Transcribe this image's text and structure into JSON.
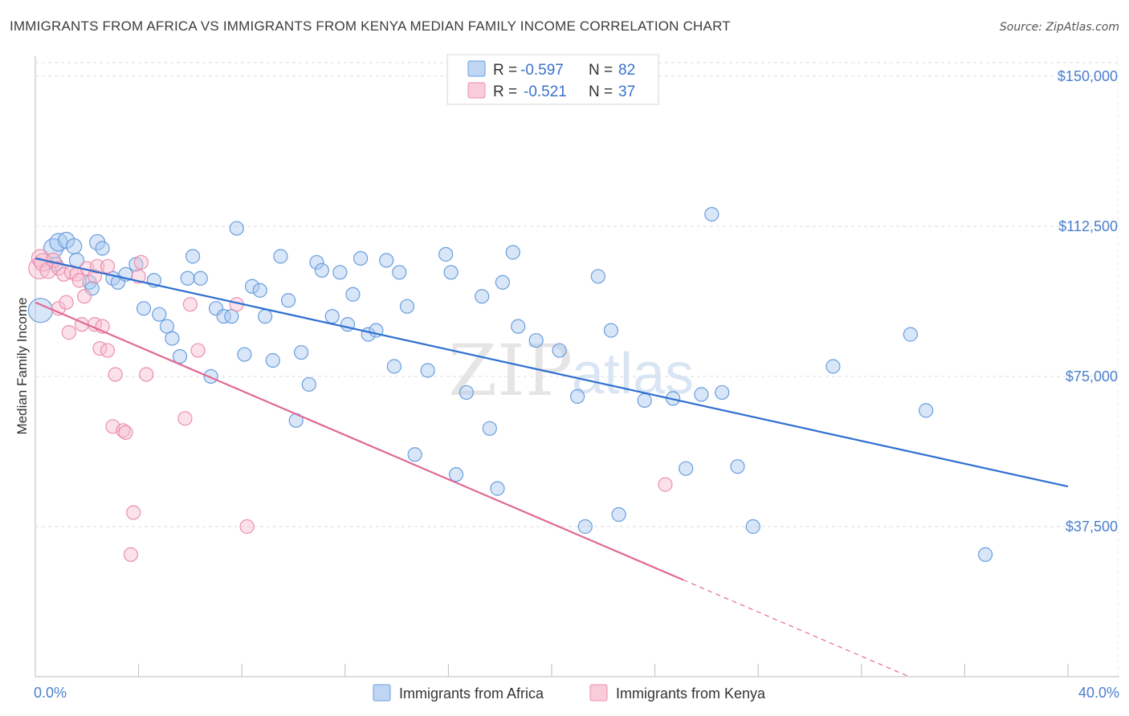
{
  "title": "IMMIGRANTS FROM AFRICA VS IMMIGRANTS FROM KENYA MEDIAN FAMILY INCOME CORRELATION CHART",
  "source": "Source: ZipAtlas.com",
  "watermark": {
    "zip": "ZIP",
    "atlas": "atlas"
  },
  "colors": {
    "africa_fill": "#a9c7ef",
    "africa_stroke": "#6a9ede",
    "africa_line": "#2e6fd0",
    "kenya_fill": "#f6bfd0",
    "kenya_stroke": "#ec8fae",
    "kenya_line": "#e06a94",
    "tick_text": "#4a7fcf",
    "grid": "#dddddd"
  },
  "legend": {
    "rows": [
      {
        "r_label": "R =",
        "r_value": "-0.597",
        "n_label": "N =",
        "n_value": "82"
      },
      {
        "r_label": "R =",
        "r_value": "-0.521",
        "n_label": "N =",
        "n_value": "37"
      }
    ]
  },
  "chart_data": {
    "type": "scatter",
    "ylabel": "Median Family Income",
    "x_tick_labels": [
      "0.0%",
      "40.0%"
    ],
    "y_tick_labels": [
      "$150,000",
      "$112,500",
      "$75,000",
      "$37,500"
    ],
    "xlim": [
      0,
      40
    ],
    "ylim": [
      0,
      155000
    ],
    "y_ticks": [
      150000,
      112500,
      75000,
      37500
    ],
    "grid": true,
    "series": [
      {
        "name": "Immigrants from Africa",
        "r": -0.597,
        "n": 82,
        "trend": {
          "x0": 0.0,
          "y0": 104500,
          "x1": 40.0,
          "y1": 47500,
          "dashed_from_x": null
        },
        "points": [
          [
            0.2,
            91500,
            30
          ],
          [
            0.7,
            107000,
            24
          ],
          [
            0.9,
            108500,
            22
          ],
          [
            1.2,
            109000,
            20
          ],
          [
            1.5,
            107500,
            19
          ],
          [
            1.6,
            104000,
            18
          ],
          [
            0.8,
            103000,
            17
          ],
          [
            2.4,
            108500,
            19
          ],
          [
            2.6,
            107000,
            17
          ],
          [
            2.1,
            98500,
            17
          ],
          [
            2.2,
            97000,
            17
          ],
          [
            3.0,
            99500,
            17
          ],
          [
            3.2,
            98500,
            17
          ],
          [
            3.5,
            100500,
            17
          ],
          [
            3.9,
            103000,
            17
          ],
          [
            4.2,
            92000,
            17
          ],
          [
            4.6,
            99000,
            17
          ],
          [
            4.8,
            90500,
            17
          ],
          [
            5.1,
            87500,
            17
          ],
          [
            5.3,
            84500,
            17
          ],
          [
            5.6,
            80000,
            17
          ],
          [
            5.9,
            99500,
            17
          ],
          [
            6.1,
            105000,
            17
          ],
          [
            6.4,
            99500,
            17
          ],
          [
            6.8,
            75000,
            17
          ],
          [
            7.0,
            92000,
            17
          ],
          [
            7.3,
            90000,
            17
          ],
          [
            7.6,
            90000,
            17
          ],
          [
            7.8,
            112000,
            17
          ],
          [
            8.1,
            80500,
            17
          ],
          [
            8.4,
            97500,
            17
          ],
          [
            8.7,
            96500,
            17
          ],
          [
            8.9,
            90000,
            17
          ],
          [
            9.2,
            79000,
            17
          ],
          [
            9.5,
            105000,
            17
          ],
          [
            9.8,
            94000,
            17
          ],
          [
            10.1,
            64000,
            17
          ],
          [
            10.3,
            81000,
            17
          ],
          [
            10.6,
            73000,
            17
          ],
          [
            10.9,
            103500,
            17
          ],
          [
            11.1,
            101500,
            17
          ],
          [
            11.5,
            90000,
            17
          ],
          [
            11.8,
            101000,
            17
          ],
          [
            12.1,
            88000,
            17
          ],
          [
            12.3,
            95500,
            17
          ],
          [
            12.6,
            104500,
            17
          ],
          [
            12.9,
            85500,
            17
          ],
          [
            13.2,
            86500,
            17
          ],
          [
            13.6,
            104000,
            17
          ],
          [
            13.9,
            77500,
            17
          ],
          [
            14.1,
            101000,
            17
          ],
          [
            14.4,
            92500,
            17
          ],
          [
            14.7,
            55500,
            17
          ],
          [
            15.2,
            76500,
            17
          ],
          [
            15.9,
            105500,
            17
          ],
          [
            16.1,
            101000,
            17
          ],
          [
            16.3,
            50500,
            17
          ],
          [
            16.7,
            71000,
            17
          ],
          [
            17.3,
            95000,
            17
          ],
          [
            17.6,
            62000,
            17
          ],
          [
            17.9,
            47000,
            17
          ],
          [
            18.1,
            98500,
            17
          ],
          [
            18.5,
            106000,
            17
          ],
          [
            18.7,
            87500,
            17
          ],
          [
            19.4,
            84000,
            17
          ],
          [
            20.3,
            81500,
            17
          ],
          [
            21.0,
            70000,
            17
          ],
          [
            21.3,
            37500,
            17
          ],
          [
            21.8,
            100000,
            17
          ],
          [
            22.6,
            40500,
            17
          ],
          [
            22.3,
            86500,
            17
          ],
          [
            23.6,
            69000,
            17
          ],
          [
            24.7,
            69500,
            17
          ],
          [
            25.2,
            52000,
            17
          ],
          [
            25.8,
            70500,
            17
          ],
          [
            26.2,
            115500,
            17
          ],
          [
            27.2,
            52500,
            17
          ],
          [
            26.6,
            71000,
            17
          ],
          [
            27.8,
            37500,
            17
          ],
          [
            30.9,
            77500,
            17
          ],
          [
            33.9,
            85500,
            17
          ],
          [
            34.5,
            66500,
            17
          ],
          [
            36.8,
            30500,
            17
          ]
        ]
      },
      {
        "name": "Immigrants from Kenya",
        "r": -0.521,
        "n": 37,
        "trend": {
          "x0": 0.0,
          "y0": 93500,
          "x1": 40.0,
          "y1": -17000,
          "dashed_from_x": 25.1
        },
        "points": [
          [
            0.15,
            102000,
            26
          ],
          [
            0.2,
            104500,
            22
          ],
          [
            0.3,
            103500,
            22
          ],
          [
            0.5,
            101500,
            20
          ],
          [
            0.7,
            104000,
            18
          ],
          [
            0.9,
            102000,
            17
          ],
          [
            1.1,
            100500,
            17
          ],
          [
            0.9,
            92000,
            17
          ],
          [
            1.2,
            93500,
            17
          ],
          [
            1.4,
            101000,
            17
          ],
          [
            1.3,
            86000,
            17
          ],
          [
            1.6,
            100500,
            17
          ],
          [
            1.7,
            99000,
            17
          ],
          [
            1.8,
            88000,
            17
          ],
          [
            1.9,
            95000,
            17
          ],
          [
            2.0,
            102000,
            17
          ],
          [
            2.3,
            88000,
            17
          ],
          [
            2.3,
            100000,
            17
          ],
          [
            2.4,
            102500,
            17
          ],
          [
            2.5,
            82000,
            17
          ],
          [
            2.6,
            87500,
            17
          ],
          [
            2.8,
            102500,
            17
          ],
          [
            2.8,
            81500,
            17
          ],
          [
            3.1,
            75500,
            17
          ],
          [
            3.0,
            62500,
            17
          ],
          [
            3.4,
            61500,
            17
          ],
          [
            3.5,
            61000,
            17
          ],
          [
            3.8,
            41000,
            17
          ],
          [
            3.7,
            30500,
            17
          ],
          [
            4.1,
            103500,
            17
          ],
          [
            4.0,
            100000,
            17
          ],
          [
            4.3,
            75500,
            17
          ],
          [
            5.8,
            64500,
            17
          ],
          [
            6.0,
            93000,
            17
          ],
          [
            6.3,
            81500,
            17
          ],
          [
            7.8,
            93000,
            17
          ],
          [
            8.2,
            37500,
            17
          ],
          [
            24.4,
            48000,
            17
          ]
        ]
      }
    ]
  },
  "bottom_legend": [
    {
      "label": "Immigrants from Africa"
    },
    {
      "label": "Immigrants from Kenya"
    }
  ]
}
